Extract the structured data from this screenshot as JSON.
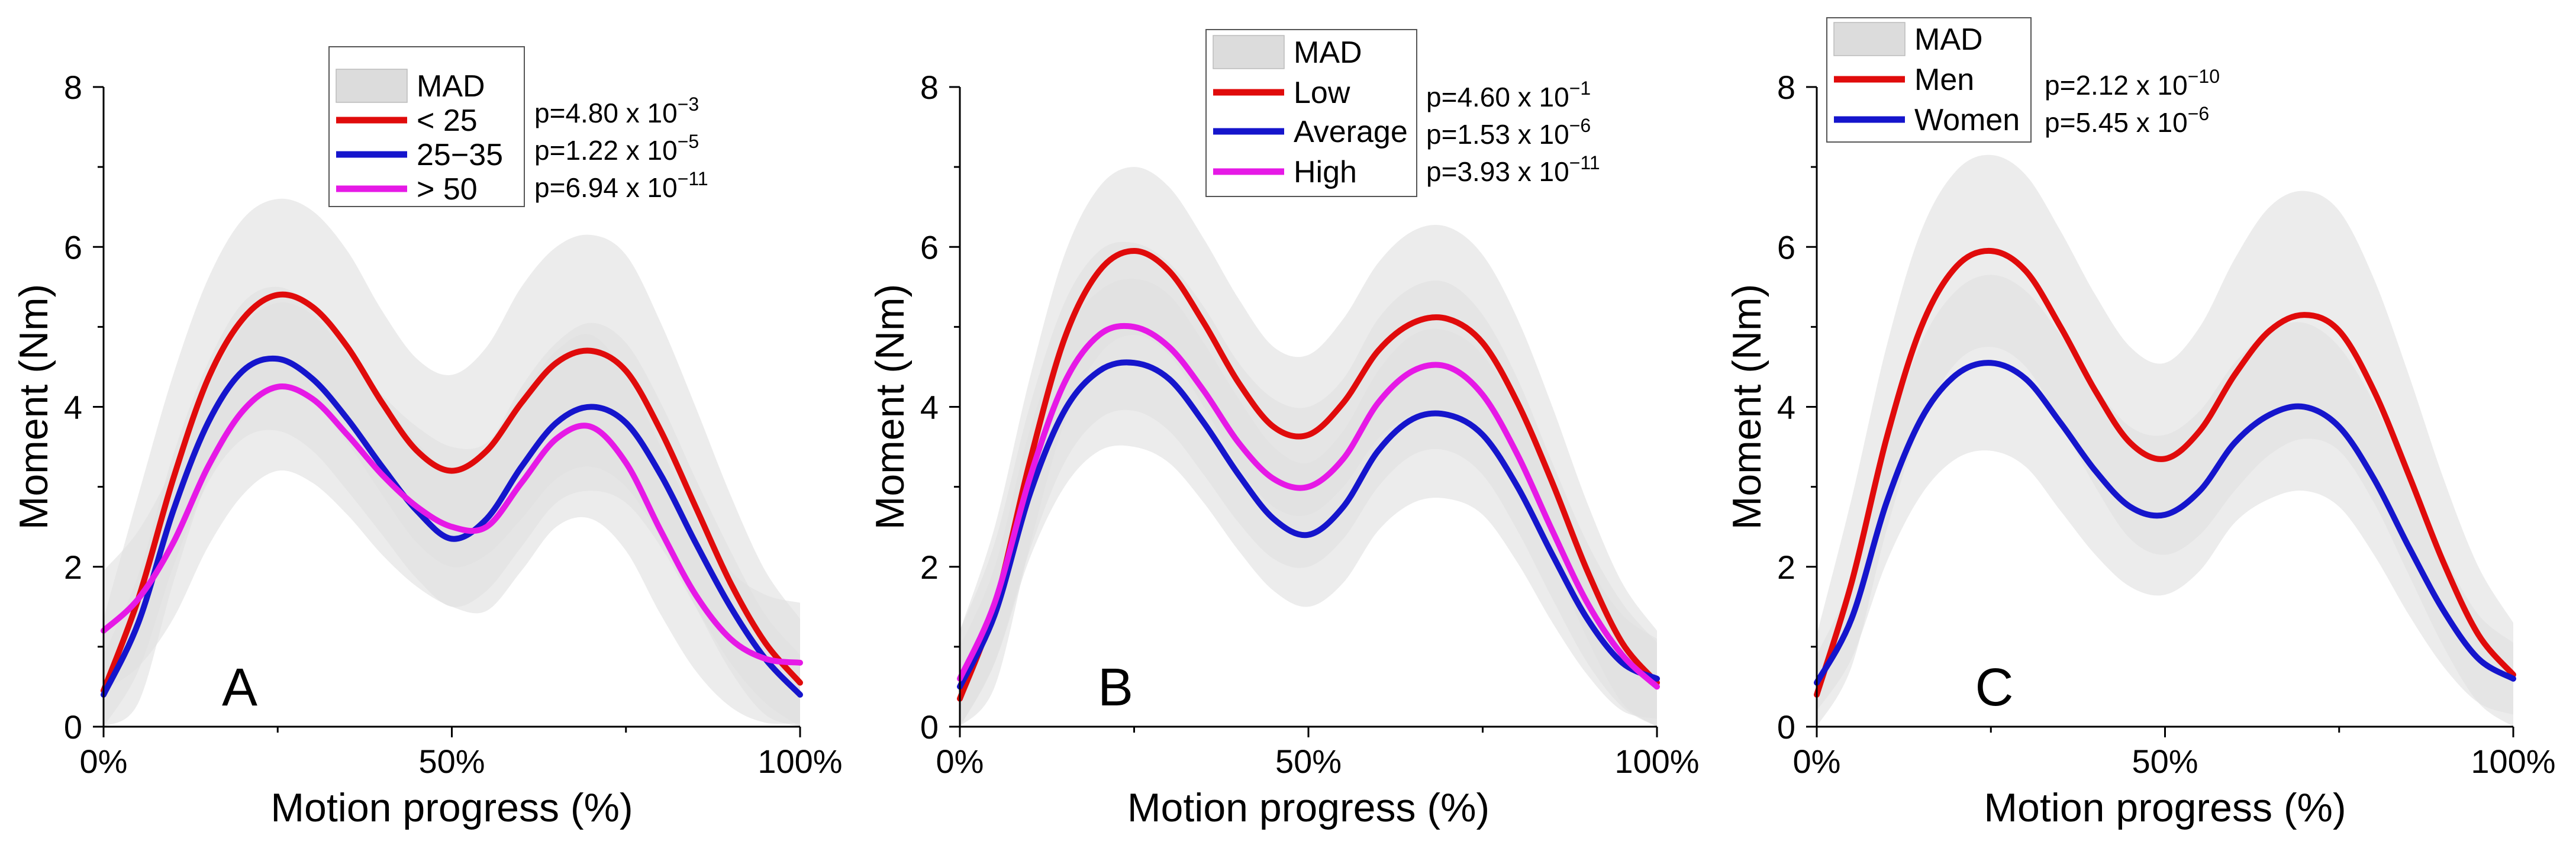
{
  "colors": {
    "red": "#e00b0b",
    "blue": "#1515cc",
    "magenta": "#e619e6",
    "mad_light": "#e1e1e1",
    "mad_dark": "#cdcdcd"
  },
  "chart_data": [
    {
      "type": "line",
      "panel_label": "A",
      "xlabel": "Motion progress (%)",
      "ylabel": "Moment (Nm)",
      "xlim": [
        0,
        100
      ],
      "ylim": [
        0,
        8
      ],
      "xticks": [
        0,
        50,
        100
      ],
      "xtick_labels": [
        "0%",
        "50%",
        "100%"
      ],
      "yticks": [
        0,
        2,
        4,
        6,
        8
      ],
      "ytick_labels": [
        "0",
        "2",
        "4",
        "6",
        "8"
      ],
      "legend": {
        "position": "top-center",
        "mad_label": "MAD"
      },
      "p_values": [
        {
          "prefix": "p=4.80 x 10",
          "exponent": "−3"
        },
        {
          "prefix": "p=1.22 x 10",
          "exponent": "−5"
        },
        {
          "prefix": "p=6.94 x 10",
          "exponent": "−11"
        }
      ],
      "x": [
        0,
        5,
        10,
        15,
        20,
        25,
        30,
        35,
        40,
        45,
        50,
        55,
        60,
        65,
        70,
        75,
        80,
        85,
        90,
        95,
        100
      ],
      "series": [
        {
          "name": "< 25",
          "color": "red",
          "values": [
            0.45,
            1.6,
            3.1,
            4.35,
            5.1,
            5.4,
            5.25,
            4.75,
            4.05,
            3.45,
            3.2,
            3.45,
            4.05,
            4.55,
            4.7,
            4.45,
            3.7,
            2.75,
            1.8,
            1.05,
            0.55
          ],
          "mad": [
            0.9,
            1.3,
            1.3,
            1.25,
            1.25,
            1.2,
            1.2,
            1.2,
            1.15,
            1.15,
            1.2,
            1.3,
            1.45,
            1.45,
            1.45,
            1.45,
            1.35,
            1.25,
            1.1,
            0.9,
            0.8
          ]
        },
        {
          "name": "25−35",
          "color": "blue",
          "values": [
            0.4,
            1.3,
            2.7,
            3.8,
            4.45,
            4.6,
            4.35,
            3.85,
            3.25,
            2.7,
            2.35,
            2.6,
            3.25,
            3.8,
            4.0,
            3.8,
            3.15,
            2.3,
            1.5,
            0.85,
            0.4
          ],
          "mad": [
            0.5,
            0.6,
            0.7,
            0.75,
            0.85,
            0.9,
            0.9,
            0.9,
            0.85,
            0.85,
            0.85,
            0.9,
            1.0,
            1.0,
            1.05,
            1.0,
            0.9,
            0.8,
            0.7,
            0.55,
            0.5
          ]
        },
        {
          "name": "> 50",
          "color": "magenta",
          "values": [
            1.2,
            1.6,
            2.3,
            3.25,
            3.95,
            4.25,
            4.1,
            3.65,
            3.15,
            2.75,
            2.5,
            2.5,
            3.05,
            3.6,
            3.75,
            3.3,
            2.45,
            1.65,
            1.1,
            0.85,
            0.8
          ],
          "mad": [
            0.75,
            0.85,
            0.95,
            1.0,
            1.05,
            1.05,
            1.05,
            1.0,
            1.0,
            1.0,
            1.0,
            1.05,
            1.1,
            1.1,
            1.15,
            1.1,
            1.05,
            0.95,
            0.85,
            0.8,
            0.75
          ]
        }
      ]
    },
    {
      "type": "line",
      "panel_label": "B",
      "xlabel": "Motion progress (%)",
      "ylabel": "Moment (Nm)",
      "xlim": [
        0,
        100
      ],
      "ylim": [
        0,
        8
      ],
      "xticks": [
        0,
        50,
        100
      ],
      "xtick_labels": [
        "0%",
        "50%",
        "100%"
      ],
      "yticks": [
        0,
        2,
        4,
        6,
        8
      ],
      "ytick_labels": [
        "0",
        "2",
        "4",
        "6",
        "8"
      ],
      "legend": {
        "position": "top-center",
        "mad_label": "MAD"
      },
      "p_values": [
        {
          "prefix": "p=4.60 x 10",
          "exponent": "−1"
        },
        {
          "prefix": "p=1.53 x 10",
          "exponent": "−6"
        },
        {
          "prefix": "p=3.93 x 10",
          "exponent": "−11"
        }
      ],
      "x": [
        0,
        5,
        10,
        15,
        20,
        25,
        30,
        35,
        40,
        45,
        50,
        55,
        60,
        65,
        70,
        75,
        80,
        85,
        90,
        95,
        100
      ],
      "series": [
        {
          "name": "Low",
          "color": "red",
          "values": [
            0.35,
            1.5,
            3.3,
            4.85,
            5.7,
            5.95,
            5.7,
            5.05,
            4.3,
            3.75,
            3.65,
            4.05,
            4.7,
            5.05,
            5.1,
            4.8,
            4.05,
            3.05,
            1.95,
            1.05,
            0.55
          ],
          "mad": [
            0.85,
            1.0,
            1.05,
            1.05,
            1.05,
            1.05,
            1.05,
            1.05,
            1.05,
            1.0,
            1.0,
            1.05,
            1.1,
            1.15,
            1.15,
            1.1,
            1.05,
            0.95,
            0.85,
            0.75,
            0.65
          ]
        },
        {
          "name": "Average",
          "color": "blue",
          "values": [
            0.5,
            1.4,
            2.9,
            3.95,
            4.45,
            4.55,
            4.35,
            3.8,
            3.15,
            2.6,
            2.4,
            2.75,
            3.45,
            3.85,
            3.9,
            3.65,
            3.0,
            2.15,
            1.35,
            0.8,
            0.6
          ],
          "mad": [
            0.5,
            0.6,
            0.8,
            0.95,
            1.0,
            1.05,
            1.05,
            1.0,
            0.95,
            0.9,
            0.9,
            0.95,
            1.0,
            1.05,
            1.05,
            1.0,
            0.95,
            0.85,
            0.7,
            0.6,
            0.5
          ]
        },
        {
          "name": "High",
          "color": "magenta",
          "values": [
            0.6,
            1.55,
            3.1,
            4.3,
            4.9,
            5.0,
            4.75,
            4.2,
            3.55,
            3.1,
            3.0,
            3.35,
            4.05,
            4.45,
            4.5,
            4.15,
            3.4,
            2.45,
            1.55,
            0.9,
            0.5
          ],
          "mad": [
            0.6,
            0.75,
            0.9,
            1.0,
            1.05,
            1.05,
            1.05,
            1.05,
            1.0,
            1.0,
            1.0,
            1.0,
            1.05,
            1.05,
            1.05,
            1.0,
            0.95,
            0.85,
            0.75,
            0.65,
            0.55
          ]
        }
      ]
    },
    {
      "type": "line",
      "panel_label": "C",
      "xlabel": "Motion progress (%)",
      "ylabel": "Moment (Nm)",
      "xlim": [
        0,
        100
      ],
      "ylim": [
        0,
        8
      ],
      "xticks": [
        0,
        50,
        100
      ],
      "xtick_labels": [
        "0%",
        "50%",
        "100%"
      ],
      "yticks": [
        0,
        2,
        4,
        6,
        8
      ],
      "ytick_labels": [
        "0",
        "2",
        "4",
        "6",
        "8"
      ],
      "legend": {
        "position": "top-left",
        "mad_label": "MAD"
      },
      "p_values": [
        {
          "prefix": "p=2.12 x 10",
          "exponent": "−10"
        },
        {
          "prefix": "p=5.45 x 10",
          "exponent": "−6"
        }
      ],
      "x": [
        0,
        5,
        10,
        15,
        20,
        25,
        30,
        35,
        40,
        45,
        50,
        55,
        60,
        65,
        70,
        75,
        80,
        85,
        90,
        95,
        100
      ],
      "series": [
        {
          "name": "Men",
          "color": "red",
          "values": [
            0.4,
            1.8,
            3.6,
            5.0,
            5.75,
            5.95,
            5.7,
            5.0,
            4.2,
            3.55,
            3.35,
            3.7,
            4.4,
            4.95,
            5.15,
            4.95,
            4.2,
            3.15,
            2.05,
            1.15,
            0.65
          ],
          "mad": [
            0.75,
            1.05,
            1.15,
            1.2,
            1.2,
            1.2,
            1.2,
            1.2,
            1.2,
            1.2,
            1.2,
            1.3,
            1.45,
            1.55,
            1.55,
            1.5,
            1.4,
            1.25,
            1.05,
            0.85,
            0.65
          ]
        },
        {
          "name": "Women",
          "color": "blue",
          "values": [
            0.55,
            1.35,
            2.8,
            3.85,
            4.4,
            4.55,
            4.35,
            3.8,
            3.2,
            2.75,
            2.65,
            2.95,
            3.55,
            3.9,
            4.0,
            3.75,
            3.1,
            2.25,
            1.45,
            0.85,
            0.6
          ],
          "mad": [
            0.35,
            0.5,
            0.75,
            0.95,
            1.05,
            1.1,
            1.1,
            1.1,
            1.05,
            1.0,
            1.0,
            1.0,
            1.0,
            1.05,
            1.05,
            1.0,
            0.95,
            0.85,
            0.7,
            0.55,
            0.45
          ]
        }
      ]
    }
  ]
}
